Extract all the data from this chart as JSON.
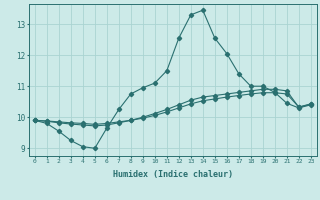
{
  "xlabel": "Humidex (Indice chaleur)",
  "background_color": "#cceae8",
  "grid_color": "#aad4d2",
  "line_color": "#2a7070",
  "xlim": [
    -0.5,
    23.5
  ],
  "ylim": [
    8.75,
    13.65
  ],
  "xticks": [
    0,
    1,
    2,
    3,
    4,
    5,
    6,
    7,
    8,
    9,
    10,
    11,
    12,
    13,
    14,
    15,
    16,
    17,
    18,
    19,
    20,
    21,
    22,
    23
  ],
  "yticks": [
    9,
    10,
    11,
    12,
    13
  ],
  "line1_x": [
    0,
    1,
    2,
    3,
    4,
    5,
    6,
    7,
    8,
    9,
    10,
    11,
    12,
    13,
    14,
    15,
    16,
    17,
    18,
    19,
    20,
    21,
    22,
    23
  ],
  "line1_y": [
    9.9,
    9.8,
    9.55,
    9.25,
    9.05,
    9.0,
    9.65,
    10.25,
    10.75,
    10.95,
    11.1,
    11.5,
    12.55,
    13.3,
    13.45,
    12.55,
    12.05,
    11.4,
    11.0,
    11.0,
    10.8,
    10.45,
    10.3,
    10.4
  ],
  "line2_x": [
    0,
    1,
    2,
    3,
    4,
    5,
    6,
    7,
    8,
    9,
    10,
    11,
    12,
    13,
    14,
    15,
    16,
    17,
    18,
    19,
    20,
    21,
    22,
    23
  ],
  "line2_y": [
    9.9,
    9.87,
    9.82,
    9.78,
    9.75,
    9.72,
    9.75,
    9.82,
    9.9,
    10.0,
    10.12,
    10.25,
    10.4,
    10.55,
    10.65,
    10.7,
    10.75,
    10.8,
    10.85,
    10.9,
    10.9,
    10.85,
    10.32,
    10.42
  ],
  "line3_x": [
    0,
    1,
    2,
    3,
    4,
    5,
    6,
    7,
    8,
    9,
    10,
    11,
    12,
    13,
    14,
    15,
    16,
    17,
    18,
    19,
    20,
    21,
    22,
    23
  ],
  "line3_y": [
    9.9,
    9.88,
    9.85,
    9.82,
    9.8,
    9.77,
    9.8,
    9.85,
    9.9,
    9.97,
    10.06,
    10.17,
    10.3,
    10.43,
    10.53,
    10.59,
    10.65,
    10.7,
    10.75,
    10.79,
    10.79,
    10.75,
    10.33,
    10.43
  ]
}
